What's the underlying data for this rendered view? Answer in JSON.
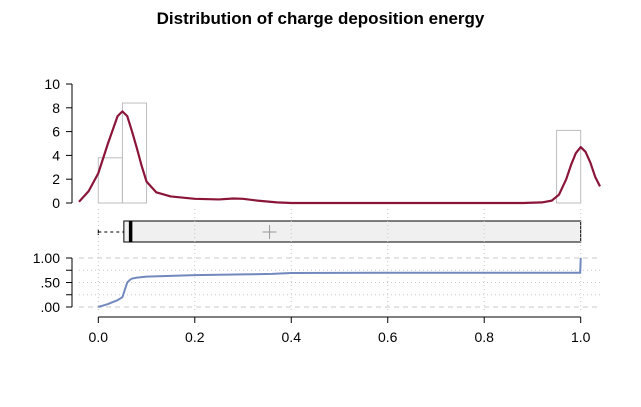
{
  "chart_data": {
    "title": "Distribution of charge deposition energy",
    "type": "histogram-density-boxplot-ecdf",
    "colors": {
      "density": "#8b1538",
      "ecdf": "#7289bd",
      "histogram_outline": "#bdbdbd",
      "box_fill": "#f0f0f0",
      "grid": "#c8c8c8"
    },
    "x_axis": {
      "range": [
        -0.04,
        1.04
      ],
      "ticks": [
        0.0,
        0.2,
        0.4,
        0.6,
        0.8,
        1.0
      ],
      "tick_labels": [
        "0.0",
        "0.2",
        "0.4",
        "0.6",
        "0.8",
        "1.0"
      ]
    },
    "histogram_panel": {
      "ylim": [
        0,
        10
      ],
      "y_ticks": [
        0,
        2,
        4,
        6,
        8,
        10
      ],
      "y_tick_labels": [
        "0",
        "2",
        "4",
        "6",
        "8",
        "10"
      ],
      "bins": [
        {
          "x0": 0.0,
          "x1": 0.05,
          "count": 3.8
        },
        {
          "x0": 0.05,
          "x1": 0.1,
          "count": 8.4
        },
        {
          "x0": 0.1,
          "x1": 0.95,
          "count": 0.0
        },
        {
          "x0": 0.95,
          "x1": 1.0,
          "count": 6.1
        }
      ],
      "density": {
        "x": [
          -0.04,
          -0.02,
          0.0,
          0.02,
          0.04,
          0.05,
          0.06,
          0.07,
          0.08,
          0.09,
          0.1,
          0.12,
          0.15,
          0.2,
          0.25,
          0.28,
          0.3,
          0.33,
          0.37,
          0.4,
          0.5,
          0.6,
          0.7,
          0.8,
          0.88,
          0.92,
          0.94,
          0.955,
          0.97,
          0.98,
          0.99,
          1.0,
          1.01,
          1.02,
          1.03,
          1.04
        ],
        "y": [
          0.1,
          1.0,
          2.5,
          5.0,
          7.3,
          7.7,
          7.3,
          6.0,
          4.6,
          3.1,
          1.8,
          0.9,
          0.55,
          0.35,
          0.3,
          0.38,
          0.35,
          0.2,
          0.05,
          0.0,
          0.0,
          0.0,
          0.0,
          0.0,
          0.0,
          0.05,
          0.2,
          0.7,
          2.0,
          3.2,
          4.2,
          4.7,
          4.3,
          3.4,
          2.2,
          1.4
        ]
      }
    },
    "boxplot_panel": {
      "whisker_low": 0.0,
      "q1": 0.053,
      "median": 0.067,
      "q3": 1.0,
      "whisker_high": 1.0,
      "mean": 0.355
    },
    "ecdf_panel": {
      "y_ticks": [
        0.0,
        0.25,
        0.5,
        0.75,
        1.0
      ],
      "y_tick_labels": [
        ".00",
        "",
        ".50",
        "",
        "1.00"
      ],
      "ecdf": {
        "x": [
          0.0,
          0.01,
          0.02,
          0.03,
          0.04,
          0.05,
          0.055,
          0.06,
          0.065,
          0.07,
          0.08,
          0.1,
          0.15,
          0.2,
          0.3,
          0.36,
          0.4,
          0.6,
          0.8,
          0.999,
          1.0
        ],
        "y": [
          0.0,
          0.03,
          0.06,
          0.1,
          0.14,
          0.2,
          0.35,
          0.5,
          0.55,
          0.58,
          0.6,
          0.62,
          0.635,
          0.65,
          0.665,
          0.675,
          0.695,
          0.7,
          0.7,
          0.7,
          1.0
        ]
      }
    }
  }
}
